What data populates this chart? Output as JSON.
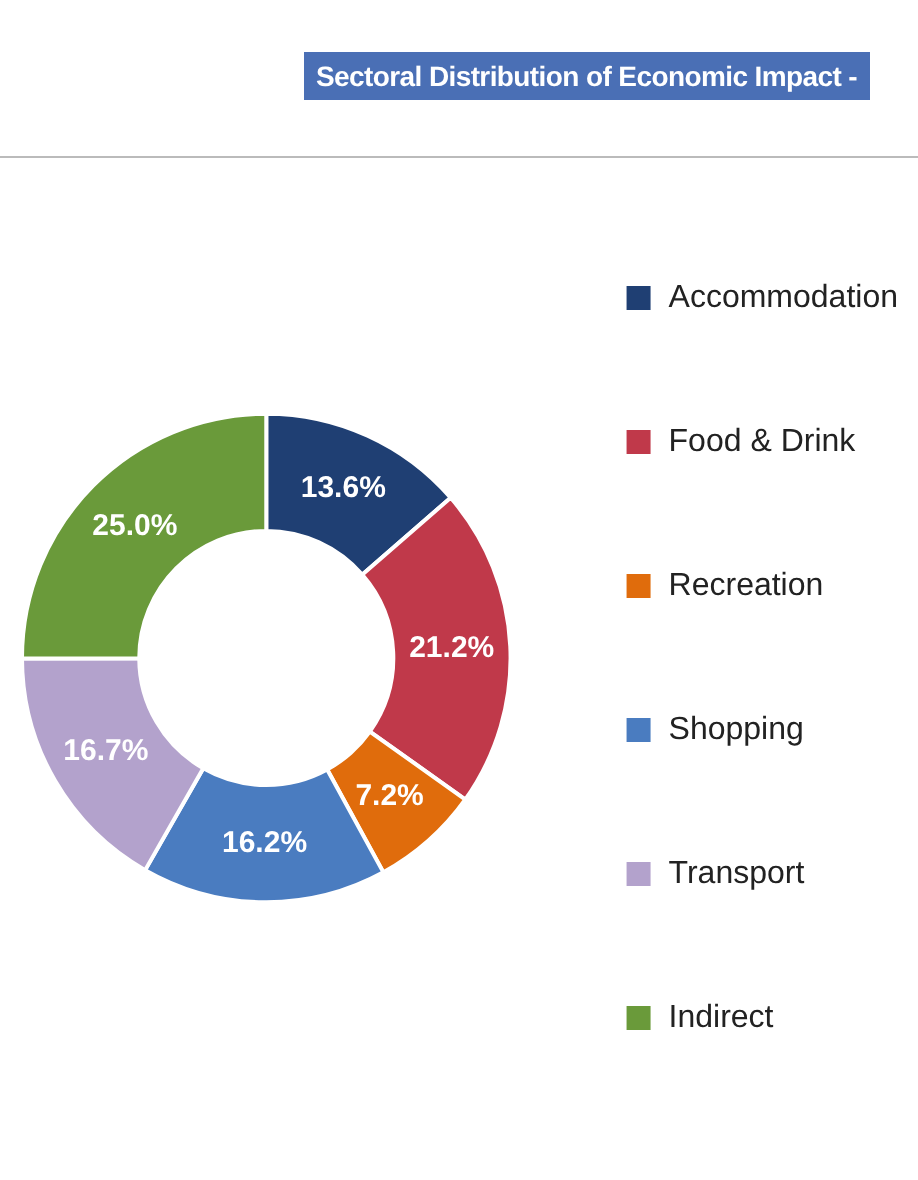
{
  "chart_data": {
    "type": "donut",
    "title": "Sectoral Distribution of Economic Impact -",
    "categories": [
      "Accommodation",
      "Food & Drink",
      "Recreation",
      "Shopping",
      "Transport",
      "Indirect"
    ],
    "values": [
      13.6,
      21.2,
      7.2,
      16.2,
      16.7,
      25.0
    ],
    "colors": [
      "#1f3f73",
      "#c0394a",
      "#e06c0c",
      "#4a7cc0",
      "#b3a2cc",
      "#6a9a3a"
    ],
    "value_labels": [
      "13.6%",
      "21.2%",
      "7.2%",
      "16.2%",
      "16.7%",
      "25.0%"
    ],
    "legend": "right"
  }
}
